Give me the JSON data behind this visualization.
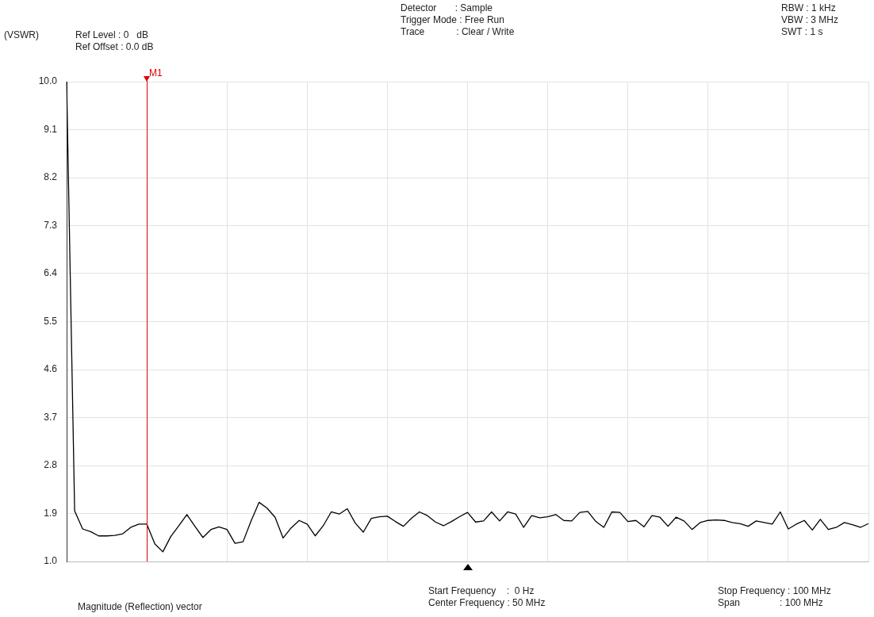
{
  "chart_data": {
    "type": "line",
    "ylabel": "(VSWR)",
    "annotations": [
      "Ref Level : 0   dB",
      "Ref Offset : 0.0 dB",
      "Detector       : Sample",
      "Trigger Mode : Free Run",
      "Trace            : Clear / Write",
      "RBW : 1 kHz",
      "VBW : 3 MHz",
      "SWT : 1 s",
      "Magnitude (Reflection) vector",
      "Start Frequency    :  0 Hz",
      "Center Frequency : 50 MHz",
      "Stop Frequency : 100 MHz",
      "Span               : 100 MHz",
      "M1"
    ],
    "categories": [
      null,
      null,
      null,
      null,
      null,
      null,
      null,
      null,
      null,
      null,
      null,
      null,
      null,
      null,
      null,
      null,
      null,
      null,
      null,
      null,
      null,
      null,
      null,
      null,
      null,
      null,
      null,
      null,
      null,
      null,
      null,
      null,
      null,
      null,
      null,
      null,
      null,
      null,
      null,
      null,
      null,
      null,
      null,
      null,
      null,
      null,
      null,
      null,
      null,
      null,
      null,
      null,
      null,
      null,
      null,
      null,
      null,
      null,
      null,
      null,
      null,
      null,
      null,
      null,
      null,
      null,
      null,
      null,
      null,
      null,
      null,
      null,
      null,
      null,
      null,
      null,
      null,
      null,
      null,
      null,
      null,
      null,
      null,
      null,
      null,
      null,
      null,
      null,
      null,
      null,
      null,
      null,
      null,
      null,
      null,
      null,
      null,
      null,
      null,
      null,
      null
    ],
    "series": [
      {
        "color": "#000000",
        "values": [
          10.0,
          1.95,
          1.61,
          1.56,
          1.48,
          1.48,
          1.49,
          1.52,
          1.64,
          1.7,
          1.7,
          1.33,
          1.18,
          1.47,
          1.67,
          1.88,
          1.66,
          1.45,
          1.6,
          1.65,
          1.6,
          1.34,
          1.37,
          1.76,
          2.11,
          2.0,
          1.83,
          1.44,
          1.63,
          1.77,
          1.7,
          1.48,
          1.67,
          1.93,
          1.89,
          1.99,
          1.72,
          1.55,
          1.81,
          1.84,
          1.85,
          1.75,
          1.66,
          1.81,
          1.93,
          1.86,
          1.74,
          1.67,
          1.75,
          1.84,
          1.92,
          1.74,
          1.76,
          1.93,
          1.76,
          1.93,
          1.89,
          1.64,
          1.86,
          1.82,
          1.84,
          1.88,
          1.77,
          1.76,
          1.92,
          1.94,
          1.75,
          1.64,
          1.93,
          1.92,
          1.75,
          1.77,
          1.65,
          1.86,
          1.83,
          1.66,
          1.83,
          1.76,
          1.6,
          1.73,
          1.77,
          1.78,
          1.77,
          1.73,
          1.71,
          1.66,
          1.76,
          1.73,
          1.7,
          1.93,
          1.61,
          1.7,
          1.77,
          1.59,
          1.79,
          1.6,
          1.64,
          1.73,
          1.69,
          1.64,
          1.71
        ]
      }
    ],
    "ylim": [
      1,
      10
    ],
    "yticks": [
      {
        "value": 1,
        "label": "1.0"
      },
      1.9,
      2.8,
      3.7,
      4.6,
      5.5,
      6.4,
      7.3,
      8.2,
      9.1,
      {
        "value": 10,
        "label": "10.0"
      }
    ],
    "tick_labels": "y",
    "grid": true,
    "legend": false,
    "marker": "none",
    "line_style": "solid"
  }
}
